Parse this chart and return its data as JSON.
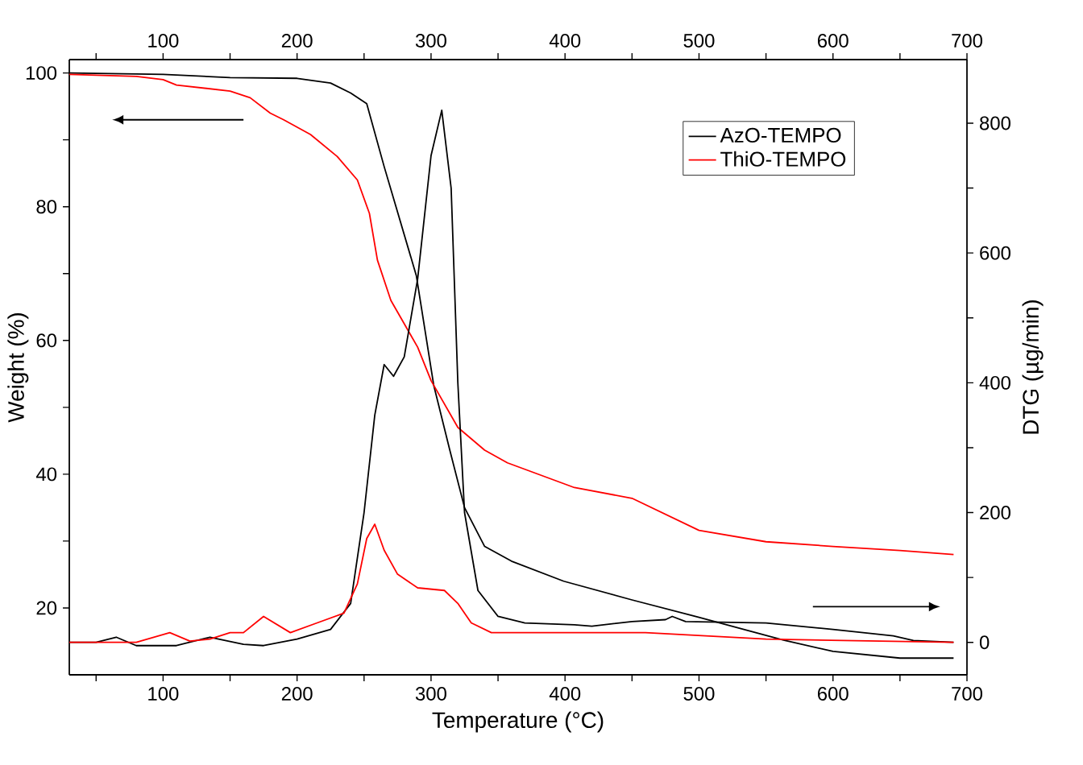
{
  "chart_data": {
    "type": "line",
    "xlabel": "Temperature (°C)",
    "ylabel": "Weight (%)",
    "y2label": "DTG (µg/min)",
    "xlim": [
      30,
      700
    ],
    "xticks": [
      {
        "value": 50,
        "label": null
      },
      100,
      {
        "value": 150,
        "label": null
      },
      200,
      {
        "value": 250,
        "label": null
      },
      300,
      {
        "value": 350,
        "label": null
      },
      400,
      {
        "value": 450,
        "label": null
      },
      500,
      {
        "value": 550,
        "label": null
      },
      600,
      {
        "value": 650,
        "label": null
      },
      700
    ],
    "x2lim": [
      30,
      700
    ],
    "x2ticks": [
      {
        "value": 50,
        "label": null
      },
      100,
      {
        "value": 150,
        "label": null
      },
      200,
      {
        "value": 250,
        "label": null
      },
      300,
      {
        "value": 350,
        "label": null
      },
      400,
      {
        "value": 450,
        "label": null
      },
      500,
      {
        "value": 550,
        "label": null
      },
      600,
      {
        "value": 650,
        "label": null
      },
      700
    ],
    "ylim": [
      10,
      102
    ],
    "yticks": [
      20,
      {
        "value": 30,
        "label": null
      },
      40,
      {
        "value": 50,
        "label": null
      },
      60,
      {
        "value": 70,
        "label": null
      },
      80,
      {
        "value": 90,
        "label": null
      },
      100
    ],
    "y2lim": [
      -50,
      898
    ],
    "y2ticks": [
      0,
      {
        "value": 100,
        "label": null
      },
      200,
      {
        "value": 300,
        "label": null
      },
      400,
      {
        "value": 500,
        "label": null
      },
      600,
      {
        "value": 700,
        "label": null
      },
      800
    ],
    "legend": "top right",
    "marker": "none",
    "line_style": "solid",
    "series": [
      {
        "name": "AzO-TEMPO",
        "color": "#000000",
        "x": [
          30,
          100,
          150,
          200,
          225,
          240,
          252,
          265,
          289,
          302,
          314,
          325,
          340,
          360,
          399,
          450,
          500,
          563,
          600,
          650,
          690
        ],
        "values": [
          100,
          99.8,
          99.3,
          99.2,
          98.5,
          97,
          95.4,
          86,
          69.7,
          53.3,
          43.6,
          35,
          29.2,
          27,
          24,
          21.2,
          18.6,
          15.2,
          13.5,
          12.5,
          12.5
        ]
      },
      {
        "name": "ThiO-TEMPO",
        "color": "#ff0000",
        "x": [
          30,
          80,
          100,
          110,
          150,
          165,
          180,
          190,
          210,
          230,
          245,
          254,
          260,
          270,
          290,
          300,
          320,
          340,
          357,
          407,
          450,
          500,
          550,
          600,
          650,
          690
        ],
        "values": [
          99.8,
          99.5,
          99,
          98.2,
          97.3,
          96.3,
          94,
          93,
          90.8,
          87.5,
          84,
          79,
          72,
          66,
          59,
          54,
          47,
          43.6,
          41.7,
          38,
          36.4,
          31.6,
          29.9,
          29.2,
          28.6,
          28
        ]
      },
      {
        "color": "#000000",
        "axis": "y2",
        "x": [
          30,
          50,
          65,
          80,
          110,
          135,
          160,
          175,
          200,
          225,
          240,
          250,
          258,
          265,
          272,
          280,
          290,
          300,
          308,
          315,
          320,
          325,
          335,
          350,
          370,
          407,
          420,
          450,
          475,
          480,
          490,
          550,
          600,
          645,
          660,
          690
        ],
        "values": [
          0,
          0,
          8,
          -5,
          -5,
          8,
          -3,
          -5,
          5,
          20,
          60,
          200,
          350,
          428,
          410,
          440,
          560,
          750,
          820,
          700,
          400,
          200,
          80,
          40,
          30,
          27,
          25,
          32,
          35,
          40,
          32,
          30,
          20,
          10,
          3,
          0
        ]
      },
      {
        "color": "#ff0000",
        "axis": "y2",
        "x": [
          30,
          80,
          105,
          120,
          135,
          150,
          160,
          175,
          195,
          215,
          235,
          245,
          252,
          258,
          265,
          275,
          290,
          310,
          320,
          330,
          345,
          400,
          460,
          550,
          690
        ],
        "values": [
          0,
          0,
          15,
          2,
          5,
          15,
          15,
          40,
          15,
          30,
          45,
          90,
          160,
          182,
          142,
          105,
          84,
          80,
          60,
          30,
          15,
          15,
          15,
          5,
          0
        ]
      }
    ]
  }
}
